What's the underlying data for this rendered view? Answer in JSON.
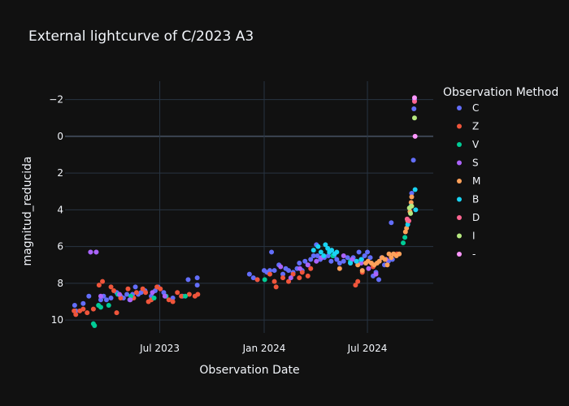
{
  "chart_data": {
    "type": "scatter",
    "title": "External lightcurve of C/2023 A3",
    "xlabel": "Observation Date",
    "ylabel": "magnitud_reducida",
    "x_type": "date",
    "xlim": [
      "2023-01-15",
      "2024-10-25"
    ],
    "ylim": [
      10.7,
      -3.0
    ],
    "y_reversed": true,
    "x_ticks": [
      {
        "value": "2023-07-01",
        "label": "Jul 2023"
      },
      {
        "value": "2024-01-01",
        "label": "Jan 2024"
      },
      {
        "value": "2024-07-01",
        "label": "Jul 2024"
      }
    ],
    "y_ticks": [
      -2,
      0,
      2,
      4,
      6,
      8,
      10
    ],
    "grid": true,
    "legend_title": "Observation Method",
    "legend_position": "right",
    "series": [
      {
        "name": "C",
        "color": "#636efa",
        "points": [
          [
            "2023-02-01",
            9.2
          ],
          [
            "2023-02-03",
            9.5
          ],
          [
            "2023-02-16",
            9.1
          ],
          [
            "2023-02-26",
            8.7
          ],
          [
            "2023-03-01",
            6.3
          ],
          [
            "2023-03-11",
            6.3
          ],
          [
            "2023-03-19",
            8.9
          ],
          [
            "2023-03-24",
            8.7
          ],
          [
            "2023-03-29",
            8.9
          ],
          [
            "2023-04-06",
            8.8
          ],
          [
            "2023-04-16",
            8.5
          ],
          [
            "2023-04-23",
            8.7
          ],
          [
            "2023-04-28",
            8.8
          ],
          [
            "2023-05-04",
            8.6
          ],
          [
            "2023-05-09",
            8.9
          ],
          [
            "2023-05-14",
            8.6
          ],
          [
            "2023-05-19",
            8.2
          ],
          [
            "2023-05-24",
            8.6
          ],
          [
            "2023-05-29",
            8.5
          ],
          [
            "2023-06-05",
            8.4
          ],
          [
            "2023-06-16",
            8.7
          ],
          [
            "2023-06-23",
            8.4
          ],
          [
            "2023-06-28",
            8.2
          ],
          [
            "2023-07-08",
            8.5
          ],
          [
            "2023-07-24",
            8.8
          ],
          [
            "2023-08-10",
            8.7
          ],
          [
            "2023-08-20",
            7.8
          ],
          [
            "2023-09-05",
            7.7
          ],
          [
            "2023-09-05",
            8.1
          ],
          [
            "2023-12-06",
            7.5
          ],
          [
            "2023-12-13",
            7.7
          ],
          [
            "2023-12-20",
            7.8
          ],
          [
            "2024-01-01",
            7.3
          ],
          [
            "2024-01-06",
            7.4
          ],
          [
            "2024-01-11",
            7.3
          ],
          [
            "2024-01-14",
            6.3
          ],
          [
            "2024-01-19",
            7.3
          ],
          [
            "2024-01-27",
            7.0
          ],
          [
            "2024-02-03",
            7.5
          ],
          [
            "2024-02-08",
            7.2
          ],
          [
            "2024-02-13",
            7.3
          ],
          [
            "2024-02-21",
            7.4
          ],
          [
            "2024-02-28",
            7.2
          ],
          [
            "2024-03-03",
            6.9
          ],
          [
            "2024-03-08",
            7.3
          ],
          [
            "2024-03-13",
            6.8
          ],
          [
            "2024-03-18",
            7.0
          ],
          [
            "2024-03-23",
            6.7
          ],
          [
            "2024-03-28",
            6.5
          ],
          [
            "2024-04-02",
            5.9
          ],
          [
            "2024-04-04",
            6.5
          ],
          [
            "2024-04-09",
            6.7
          ],
          [
            "2024-04-16",
            6.6
          ],
          [
            "2024-04-23",
            6.5
          ],
          [
            "2024-04-28",
            6.8
          ],
          [
            "2024-05-03",
            6.5
          ],
          [
            "2024-05-08",
            6.7
          ],
          [
            "2024-05-13",
            6.9
          ],
          [
            "2024-05-20",
            6.8
          ],
          [
            "2024-05-27",
            6.6
          ],
          [
            "2024-06-01",
            6.9
          ],
          [
            "2024-06-06",
            6.6
          ],
          [
            "2024-06-11",
            6.8
          ],
          [
            "2024-06-16",
            6.3
          ],
          [
            "2024-06-21",
            6.7
          ],
          [
            "2024-06-26",
            6.5
          ],
          [
            "2024-07-01",
            6.3
          ],
          [
            "2024-07-06",
            6.6
          ],
          [
            "2024-07-11",
            7.6
          ],
          [
            "2024-07-16",
            7.4
          ],
          [
            "2024-07-21",
            7.8
          ],
          [
            "2024-07-26",
            6.6
          ],
          [
            "2024-07-31",
            7.0
          ],
          [
            "2024-08-07",
            6.8
          ],
          [
            "2024-08-12",
            4.7
          ],
          [
            "2024-08-14",
            6.7
          ],
          [
            "2024-09-17",
            3.1
          ],
          [
            "2024-09-20",
            1.3
          ],
          [
            "2024-09-21",
            -1.5
          ],
          [
            "2024-09-22",
            -2.0
          ]
        ]
      },
      {
        "name": "Z",
        "color": "#ef553b",
        "points": [
          [
            "2023-01-31",
            9.5
          ],
          [
            "2023-02-03",
            9.7
          ],
          [
            "2023-02-10",
            9.5
          ],
          [
            "2023-02-16",
            9.4
          ],
          [
            "2023-02-23",
            9.6
          ],
          [
            "2023-03-06",
            9.4
          ],
          [
            "2023-03-16",
            8.1
          ],
          [
            "2023-03-22",
            7.9
          ],
          [
            "2023-04-06",
            8.2
          ],
          [
            "2023-04-11",
            8.4
          ],
          [
            "2023-04-16",
            9.6
          ],
          [
            "2023-04-23",
            8.8
          ],
          [
            "2023-05-06",
            8.3
          ],
          [
            "2023-05-16",
            8.8
          ],
          [
            "2023-05-21",
            8.5
          ],
          [
            "2023-06-01",
            8.3
          ],
          [
            "2023-06-06",
            8.5
          ],
          [
            "2023-06-11",
            9.0
          ],
          [
            "2023-06-16",
            8.9
          ],
          [
            "2023-06-26",
            8.2
          ],
          [
            "2023-07-02",
            8.3
          ],
          [
            "2023-07-12",
            8.7
          ],
          [
            "2023-07-17",
            8.9
          ],
          [
            "2023-07-24",
            9.0
          ],
          [
            "2023-08-01",
            8.5
          ],
          [
            "2023-08-08",
            8.7
          ],
          [
            "2023-08-22",
            8.6
          ],
          [
            "2023-09-01",
            8.7
          ],
          [
            "2023-09-06",
            8.6
          ],
          [
            "2023-12-20",
            7.8
          ],
          [
            "2024-01-11",
            7.5
          ],
          [
            "2024-01-19",
            7.9
          ],
          [
            "2024-01-22",
            8.2
          ],
          [
            "2024-02-03",
            7.7
          ],
          [
            "2024-02-13",
            7.9
          ],
          [
            "2024-02-21",
            7.5
          ],
          [
            "2024-03-03",
            7.7
          ],
          [
            "2024-03-08",
            7.4
          ],
          [
            "2024-03-18",
            7.6
          ],
          [
            "2024-03-23",
            7.2
          ],
          [
            "2024-06-10",
            8.1
          ],
          [
            "2024-06-14",
            7.9
          ],
          [
            "2024-06-22",
            7.4
          ],
          [
            "2024-07-11",
            7.1
          ],
          [
            "2024-08-22",
            6.4
          ]
        ]
      },
      {
        "name": "V",
        "color": "#00cc96",
        "points": [
          [
            "2023-03-06",
            10.2
          ],
          [
            "2023-03-08",
            10.3
          ],
          [
            "2023-03-15",
            9.2
          ],
          [
            "2023-03-19",
            9.3
          ],
          [
            "2023-04-02",
            9.2
          ],
          [
            "2023-04-18",
            8.6
          ],
          [
            "2023-05-11",
            8.7
          ],
          [
            "2023-06-21",
            8.8
          ],
          [
            "2023-07-12",
            8.7
          ],
          [
            "2023-08-15",
            8.7
          ],
          [
            "2024-01-02",
            7.8
          ],
          [
            "2024-05-01",
            6.5
          ],
          [
            "2024-06-01",
            6.8
          ],
          [
            "2024-09-02",
            5.8
          ],
          [
            "2024-09-05",
            5.5
          ]
        ]
      },
      {
        "name": "S",
        "color": "#ab63fa",
        "points": [
          [
            "2023-03-01",
            6.3
          ],
          [
            "2023-03-11",
            6.3
          ],
          [
            "2023-03-19",
            8.7
          ],
          [
            "2023-04-21",
            8.6
          ],
          [
            "2023-05-10",
            8.9
          ],
          [
            "2023-06-18",
            8.5
          ],
          [
            "2023-07-10",
            8.7
          ],
          [
            "2024-01-30",
            7.1
          ],
          [
            "2024-02-17",
            7.7
          ],
          [
            "2024-03-04",
            7.2
          ],
          [
            "2024-03-18",
            7.0
          ],
          [
            "2024-04-02",
            6.8
          ],
          [
            "2024-04-11",
            6.6
          ],
          [
            "2024-05-20",
            6.5
          ],
          [
            "2024-06-04",
            6.7
          ],
          [
            "2024-06-20",
            6.9
          ],
          [
            "2024-07-03",
            7.2
          ],
          [
            "2024-07-16",
            7.5
          ],
          [
            "2024-08-03",
            6.7
          ]
        ]
      },
      {
        "name": "M",
        "color": "#ffa15a",
        "points": [
          [
            "2024-05-13",
            7.2
          ],
          [
            "2024-06-14",
            7.0
          ],
          [
            "2024-06-22",
            7.3
          ],
          [
            "2024-06-28",
            6.9
          ],
          [
            "2024-07-02",
            6.8
          ],
          [
            "2024-07-08",
            6.9
          ],
          [
            "2024-07-13",
            7.0
          ],
          [
            "2024-07-18",
            6.9
          ],
          [
            "2024-07-22",
            6.8
          ],
          [
            "2024-07-27",
            6.6
          ],
          [
            "2024-08-01",
            6.7
          ],
          [
            "2024-08-05",
            7.0
          ],
          [
            "2024-08-08",
            6.4
          ],
          [
            "2024-08-12",
            6.6
          ],
          [
            "2024-08-16",
            6.4
          ],
          [
            "2024-08-21",
            6.5
          ],
          [
            "2024-08-26",
            6.4
          ],
          [
            "2024-09-06",
            5.2
          ],
          [
            "2024-09-08",
            5.0
          ],
          [
            "2024-09-10",
            4.6
          ],
          [
            "2024-09-14",
            4.1
          ],
          [
            "2024-09-16",
            3.6
          ],
          [
            "2024-09-17",
            3.3
          ]
        ]
      },
      {
        "name": "B",
        "color": "#19d3f3",
        "points": [
          [
            "2024-03-28",
            6.2
          ],
          [
            "2024-04-05",
            6.0
          ],
          [
            "2024-04-10",
            6.3
          ],
          [
            "2024-04-15",
            6.5
          ],
          [
            "2024-04-18",
            5.9
          ],
          [
            "2024-04-22",
            6.1
          ],
          [
            "2024-04-25",
            6.3
          ],
          [
            "2024-04-29",
            6.2
          ],
          [
            "2024-05-04",
            6.4
          ],
          [
            "2024-05-08",
            6.3
          ],
          [
            "2024-06-01",
            6.9
          ],
          [
            "2024-06-12",
            6.8
          ],
          [
            "2024-06-20",
            6.7
          ],
          [
            "2024-09-10",
            4.8
          ],
          [
            "2024-09-16",
            3.8
          ],
          [
            "2024-09-23",
            2.9
          ],
          [
            "2024-09-24",
            4.0
          ]
        ]
      },
      {
        "name": "D",
        "color": "#ff6692",
        "points": [
          [
            "2024-09-09",
            4.5
          ],
          [
            "2024-09-12",
            4.6
          ],
          [
            "2024-09-22",
            -1.9
          ]
        ]
      },
      {
        "name": "I",
        "color": "#b6e880",
        "points": [
          [
            "2024-09-13",
            3.9
          ],
          [
            "2024-09-15",
            4.2
          ],
          [
            "2024-09-17",
            3.8
          ],
          [
            "2024-09-22",
            -1.0
          ]
        ]
      },
      {
        "name": "-",
        "color": "#ff97ff",
        "points": [
          [
            "2024-09-22",
            -2.1
          ],
          [
            "2024-09-23",
            0.0
          ]
        ]
      }
    ]
  }
}
